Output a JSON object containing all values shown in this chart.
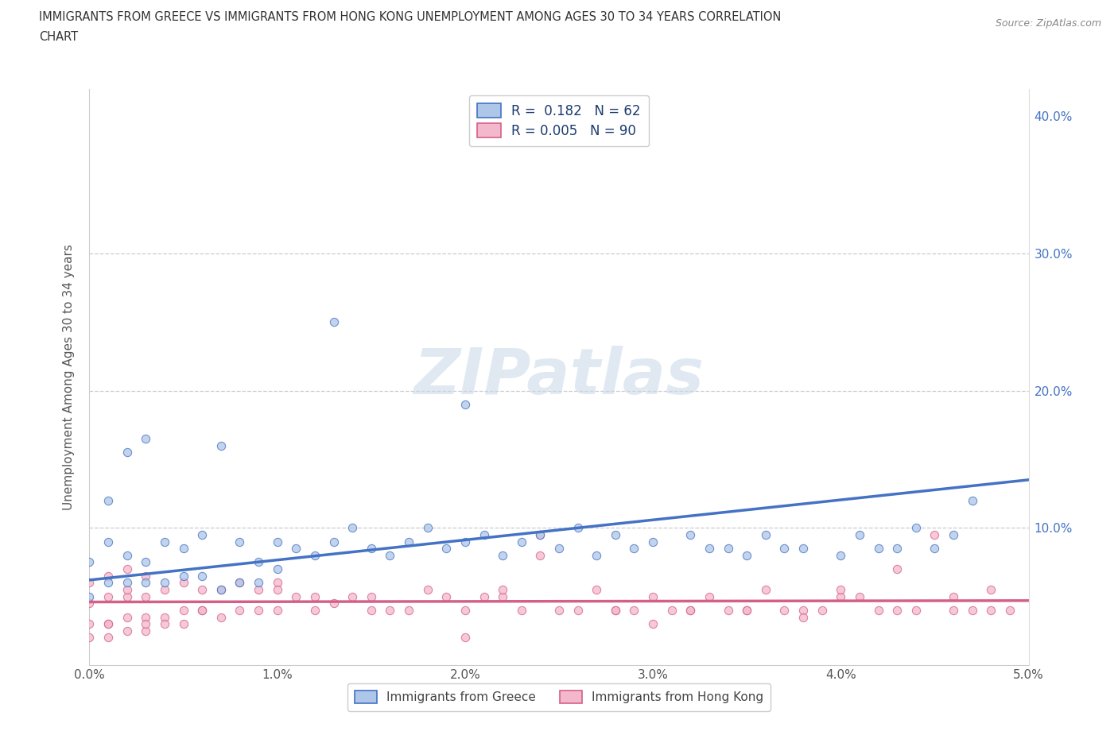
{
  "title_line1": "IMMIGRANTS FROM GREECE VS IMMIGRANTS FROM HONG KONG UNEMPLOYMENT AMONG AGES 30 TO 34 YEARS CORRELATION",
  "title_line2": "CHART",
  "source": "Source: ZipAtlas.com",
  "ylabel": "Unemployment Among Ages 30 to 34 years",
  "xlim": [
    0.0,
    0.05
  ],
  "ylim": [
    0.0,
    0.42
  ],
  "xtick_vals": [
    0.0,
    0.01,
    0.02,
    0.03,
    0.04,
    0.05
  ],
  "xtick_labels": [
    "0.0%",
    "1.0%",
    "2.0%",
    "3.0%",
    "4.0%",
    "5.0%"
  ],
  "ytick_vals": [
    0.0,
    0.1,
    0.2,
    0.3,
    0.4
  ],
  "ytick_labels": [
    "",
    "10.0%",
    "20.0%",
    "30.0%",
    "40.0%"
  ],
  "greece_R": 0.182,
  "greece_N": 62,
  "hk_R": 0.005,
  "hk_N": 90,
  "greece_fill_color": "#aec6e8",
  "greece_edge_color": "#4472c4",
  "hk_fill_color": "#f4b8cc",
  "hk_edge_color": "#d4608a",
  "greece_line_color": "#4472c4",
  "hk_line_color": "#d4608a",
  "watermark": "ZIPatlas",
  "greece_trend_x0": 0.0,
  "greece_trend_y0": 0.062,
  "greece_trend_x1": 0.05,
  "greece_trend_y1": 0.135,
  "hk_trend_x0": 0.0,
  "hk_trend_y0": 0.046,
  "hk_trend_x1": 0.05,
  "hk_trend_y1": 0.047,
  "greece_x": [
    0.0,
    0.0,
    0.001,
    0.001,
    0.001,
    0.002,
    0.002,
    0.002,
    0.003,
    0.003,
    0.003,
    0.004,
    0.004,
    0.005,
    0.005,
    0.006,
    0.006,
    0.007,
    0.007,
    0.008,
    0.008,
    0.009,
    0.009,
    0.01,
    0.01,
    0.011,
    0.012,
    0.013,
    0.014,
    0.015,
    0.016,
    0.017,
    0.018,
    0.019,
    0.02,
    0.021,
    0.022,
    0.023,
    0.024,
    0.025,
    0.026,
    0.027,
    0.028,
    0.029,
    0.03,
    0.032,
    0.033,
    0.034,
    0.035,
    0.036,
    0.037,
    0.038,
    0.04,
    0.041,
    0.042,
    0.043,
    0.044,
    0.045,
    0.046,
    0.047,
    0.013,
    0.02
  ],
  "greece_y": [
    0.05,
    0.075,
    0.06,
    0.09,
    0.12,
    0.06,
    0.08,
    0.155,
    0.06,
    0.075,
    0.165,
    0.06,
    0.09,
    0.065,
    0.085,
    0.065,
    0.095,
    0.055,
    0.16,
    0.06,
    0.09,
    0.06,
    0.075,
    0.07,
    0.09,
    0.085,
    0.08,
    0.09,
    0.1,
    0.085,
    0.08,
    0.09,
    0.1,
    0.085,
    0.09,
    0.095,
    0.08,
    0.09,
    0.095,
    0.085,
    0.1,
    0.08,
    0.095,
    0.085,
    0.09,
    0.095,
    0.085,
    0.085,
    0.08,
    0.095,
    0.085,
    0.085,
    0.08,
    0.095,
    0.085,
    0.085,
    0.1,
    0.085,
    0.095,
    0.12,
    0.25,
    0.19
  ],
  "hk_x": [
    0.0,
    0.0,
    0.0,
    0.0,
    0.001,
    0.001,
    0.001,
    0.001,
    0.002,
    0.002,
    0.002,
    0.002,
    0.003,
    0.003,
    0.003,
    0.003,
    0.004,
    0.004,
    0.004,
    0.005,
    0.005,
    0.005,
    0.006,
    0.006,
    0.007,
    0.007,
    0.008,
    0.008,
    0.009,
    0.009,
    0.01,
    0.01,
    0.011,
    0.012,
    0.013,
    0.014,
    0.015,
    0.016,
    0.017,
    0.018,
    0.019,
    0.02,
    0.021,
    0.022,
    0.023,
    0.024,
    0.025,
    0.026,
    0.027,
    0.028,
    0.029,
    0.03,
    0.031,
    0.032,
    0.033,
    0.034,
    0.035,
    0.036,
    0.037,
    0.038,
    0.039,
    0.04,
    0.041,
    0.042,
    0.043,
    0.044,
    0.045,
    0.046,
    0.047,
    0.048,
    0.049,
    0.024,
    0.043,
    0.035,
    0.01,
    0.028,
    0.038,
    0.046,
    0.032,
    0.02,
    0.015,
    0.006,
    0.002,
    0.001,
    0.003,
    0.012,
    0.022,
    0.03,
    0.04,
    0.048
  ],
  "hk_y": [
    0.03,
    0.045,
    0.06,
    0.02,
    0.03,
    0.05,
    0.065,
    0.02,
    0.035,
    0.05,
    0.07,
    0.025,
    0.035,
    0.05,
    0.065,
    0.025,
    0.035,
    0.055,
    0.03,
    0.04,
    0.06,
    0.03,
    0.04,
    0.055,
    0.035,
    0.055,
    0.04,
    0.06,
    0.04,
    0.055,
    0.04,
    0.06,
    0.05,
    0.05,
    0.045,
    0.05,
    0.05,
    0.04,
    0.04,
    0.055,
    0.05,
    0.04,
    0.05,
    0.05,
    0.04,
    0.095,
    0.04,
    0.04,
    0.055,
    0.04,
    0.04,
    0.05,
    0.04,
    0.04,
    0.05,
    0.04,
    0.04,
    0.055,
    0.04,
    0.04,
    0.04,
    0.05,
    0.05,
    0.04,
    0.04,
    0.04,
    0.095,
    0.04,
    0.04,
    0.055,
    0.04,
    0.08,
    0.07,
    0.04,
    0.055,
    0.04,
    0.035,
    0.05,
    0.04,
    0.02,
    0.04,
    0.04,
    0.055,
    0.03,
    0.03,
    0.04,
    0.055,
    0.03,
    0.055,
    0.04
  ]
}
